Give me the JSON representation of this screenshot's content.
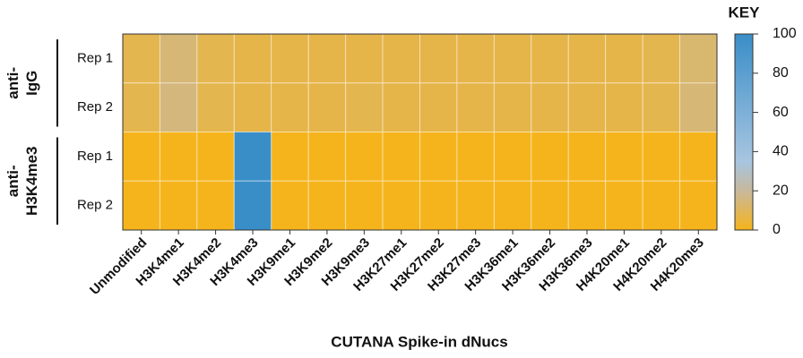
{
  "chart_data": {
    "type": "heatmap",
    "x_title": "CUTANA Spike-in dNucs",
    "categories": [
      "Unmodified",
      "H3K4me1",
      "H3K4me2",
      "H3K4me3",
      "H3K9me1",
      "H3K9me2",
      "H3K9me3",
      "H3K27me1",
      "H3K27me2",
      "H3K27me3",
      "H3K36me1",
      "H3K36me2",
      "H3K36me3",
      "H4K20me1",
      "H4K20me2",
      "H4K20me3"
    ],
    "groups": [
      {
        "label": [
          "anti-",
          "IgG"
        ],
        "rows": [
          "Rep 1",
          "Rep 2"
        ]
      },
      {
        "label": [
          "anti-",
          "H3K4me3"
        ],
        "rows": [
          "Rep 1",
          "Rep 2"
        ]
      }
    ],
    "values": [
      [
        8,
        14,
        8,
        7,
        7,
        7,
        7,
        7,
        7,
        7,
        7,
        7,
        7,
        7,
        8,
        13
      ],
      [
        8,
        15,
        8,
        7,
        7,
        7,
        8,
        7,
        7,
        7,
        7,
        7,
        7,
        7,
        8,
        14
      ],
      [
        0,
        0,
        0,
        100,
        0,
        0,
        0,
        0,
        0,
        0,
        0,
        0,
        0,
        0,
        0,
        0
      ],
      [
        0,
        0,
        0,
        100,
        0,
        0,
        0,
        0,
        0,
        0,
        0,
        0,
        0,
        0,
        0,
        0
      ]
    ],
    "colorbar_title": "KEY",
    "zlim": [
      0,
      100
    ],
    "zticks": [
      0,
      20,
      40,
      60,
      80,
      100
    ],
    "colorscale": [
      [
        0,
        "#f6b41c"
      ],
      [
        20,
        "#c8b89c"
      ],
      [
        35,
        "#a7c5e0"
      ],
      [
        100,
        "#3a8ec8"
      ]
    ]
  }
}
